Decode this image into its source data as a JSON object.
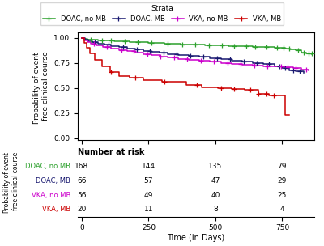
{
  "chart_data": {
    "type": "step",
    "ylabel": "Probability of event–\nfree clinical course",
    "xlabel": "Time (in Days)",
    "legend": "upper center",
    "legend_title": "Strata",
    "marker": "+",
    "xlim": [
      -15,
      870
    ],
    "ylim": [
      -0.02,
      1.06
    ],
    "xticks": [
      0,
      250,
      500,
      750
    ],
    "yticks": [
      {
        "value": 0.0,
        "label": "0.00"
      },
      {
        "value": 0.25,
        "label": "0.25"
      },
      {
        "value": 0.5,
        "label": "0.50"
      },
      {
        "value": 0.75,
        "label": "0.75"
      },
      {
        "value": 1.0,
        "label": "1.00"
      }
    ],
    "risk_header": "Number at risk",
    "risk_times": [
      0,
      250,
      500,
      750
    ],
    "series": [
      {
        "name": "DOAC, no MB",
        "color": "#2ca02c",
        "x": [
          0,
          8,
          15,
          22,
          30,
          45,
          60,
          90,
          120,
          150,
          180,
          200,
          220,
          250,
          280,
          310,
          340,
          370,
          400,
          430,
          460,
          490,
          520,
          550,
          580,
          610,
          640,
          670,
          700,
          720,
          740,
          760,
          780,
          800,
          820,
          840,
          860
        ],
        "values": [
          1.0,
          0.994,
          0.99,
          0.987,
          0.984,
          0.98,
          0.976,
          0.972,
          0.968,
          0.964,
          0.96,
          0.958,
          0.956,
          0.952,
          0.948,
          0.945,
          0.942,
          0.939,
          0.936,
          0.933,
          0.93,
          0.928,
          0.925,
          0.922,
          0.919,
          0.916,
          0.913,
          0.91,
          0.907,
          0.904,
          0.9,
          0.897,
          0.888,
          0.875,
          0.858,
          0.845,
          0.84
        ],
        "censor_x": [
          35,
          75,
          110,
          160,
          210,
          260,
          320,
          375,
          425,
          475,
          525,
          570,
          615,
          650,
          690,
          730,
          755,
          775,
          808,
          830,
          850,
          862
        ],
        "censor_y": [
          0.984,
          0.976,
          0.972,
          0.964,
          0.958,
          0.952,
          0.945,
          0.939,
          0.936,
          0.93,
          0.925,
          0.922,
          0.916,
          0.913,
          0.91,
          0.904,
          0.9,
          0.897,
          0.875,
          0.858,
          0.845,
          0.845
        ],
        "at_risk": [
          168,
          144,
          135,
          79
        ]
      },
      {
        "name": "DOAC, MB",
        "color": "#191970",
        "x": [
          0,
          12,
          25,
          40,
          60,
          85,
          110,
          140,
          170,
          200,
          230,
          260,
          290,
          320,
          360,
          400,
          440,
          480,
          520,
          560,
          600,
          640,
          680,
          720,
          750,
          775,
          800,
          830
        ],
        "values": [
          1.0,
          0.985,
          0.97,
          0.958,
          0.945,
          0.932,
          0.92,
          0.908,
          0.896,
          0.885,
          0.874,
          0.863,
          0.852,
          0.841,
          0.83,
          0.82,
          0.81,
          0.8,
          0.788,
          0.776,
          0.764,
          0.752,
          0.74,
          0.72,
          0.7,
          0.68,
          0.665,
          0.65
        ],
        "censor_x": [
          50,
          100,
          155,
          205,
          255,
          305,
          355,
          405,
          455,
          505,
          555,
          605,
          655,
          700,
          740,
          760,
          790,
          815
        ],
        "censor_y": [
          0.958,
          0.932,
          0.908,
          0.885,
          0.874,
          0.852,
          0.841,
          0.82,
          0.81,
          0.8,
          0.788,
          0.764,
          0.752,
          0.74,
          0.72,
          0.7,
          0.68,
          0.665
        ],
        "at_risk": [
          66,
          57,
          47,
          29
        ]
      },
      {
        "name": "VKA, no MB",
        "color": "#cc00cc",
        "x": [
          0,
          10,
          20,
          35,
          55,
          80,
          110,
          140,
          170,
          200,
          230,
          260,
          290,
          320,
          360,
          400,
          440,
          480,
          520,
          560,
          600,
          640,
          680,
          720,
          760,
          790,
          820,
          850
        ],
        "values": [
          1.0,
          0.975,
          0.96,
          0.945,
          0.928,
          0.912,
          0.897,
          0.882,
          0.868,
          0.854,
          0.84,
          0.828,
          0.816,
          0.804,
          0.793,
          0.782,
          0.772,
          0.762,
          0.752,
          0.743,
          0.735,
          0.727,
          0.72,
          0.713,
          0.706,
          0.7,
          0.688,
          0.675
        ],
        "censor_x": [
          45,
          95,
          150,
          195,
          245,
          295,
          345,
          395,
          445,
          495,
          545,
          595,
          645,
          695,
          745,
          770,
          800,
          840
        ],
        "censor_y": [
          0.945,
          0.912,
          0.882,
          0.868,
          0.84,
          0.816,
          0.804,
          0.793,
          0.772,
          0.762,
          0.752,
          0.743,
          0.727,
          0.72,
          0.713,
          0.706,
          0.7,
          0.688
        ],
        "at_risk": [
          56,
          49,
          40,
          25
        ]
      },
      {
        "name": "VKA, MB",
        "color": "#cc0000",
        "x": [
          0,
          8,
          18,
          30,
          50,
          75,
          105,
          140,
          180,
          230,
          300,
          390,
          450,
          510,
          560,
          610,
          660,
          700,
          730,
          760,
          775
        ],
        "values": [
          1.0,
          0.95,
          0.9,
          0.85,
          0.78,
          0.72,
          0.66,
          0.62,
          0.6,
          0.58,
          0.56,
          0.53,
          0.51,
          0.5,
          0.49,
          0.48,
          0.44,
          0.43,
          0.43,
          0.23,
          0.23
        ],
        "censor_x": [
          110,
          200,
          310,
          430,
          520,
          570,
          630,
          660,
          690,
          718
        ],
        "censor_y": [
          0.66,
          0.6,
          0.56,
          0.53,
          0.5,
          0.49,
          0.48,
          0.44,
          0.44,
          0.43
        ],
        "at_risk": [
          20,
          11,
          8,
          4
        ]
      }
    ]
  }
}
